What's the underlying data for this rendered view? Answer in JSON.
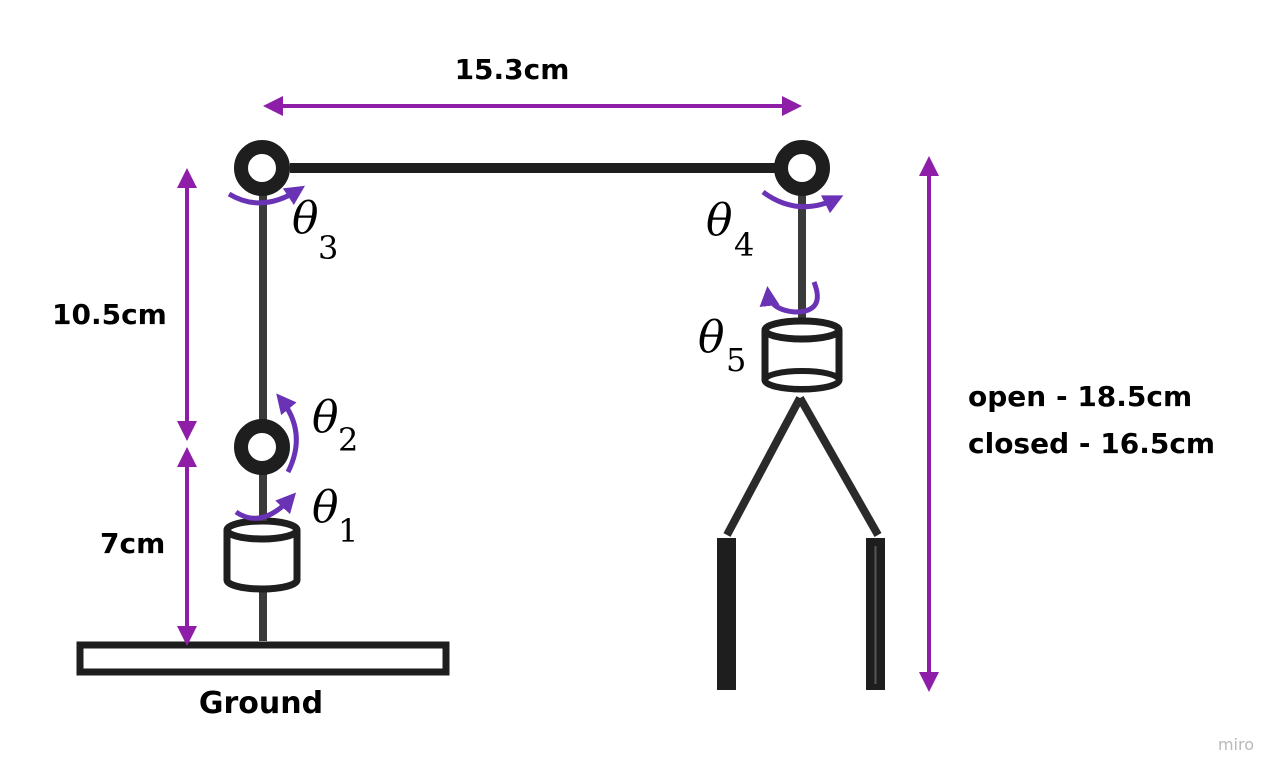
{
  "dimensions": {
    "top_width": "15.3cm",
    "upper_link": "10.5cm",
    "lower_link": "7cm",
    "gripper_open": "open - 18.5cm",
    "gripper_closed": "closed - 16.5cm"
  },
  "labels": {
    "ground": "Ground",
    "watermark": "miro"
  },
  "joints": {
    "theta1": {
      "symbol": "θ",
      "index": "1"
    },
    "theta2": {
      "symbol": "θ",
      "index": "2"
    },
    "theta3": {
      "symbol": "θ",
      "index": "3"
    },
    "theta4": {
      "symbol": "θ",
      "index": "4"
    },
    "theta5": {
      "symbol": "θ",
      "index": "5"
    }
  },
  "colors": {
    "dimension_arrows": "#8e1da8",
    "rotation_arrows": "#6a32b4",
    "structure": "#1e1e1e"
  }
}
